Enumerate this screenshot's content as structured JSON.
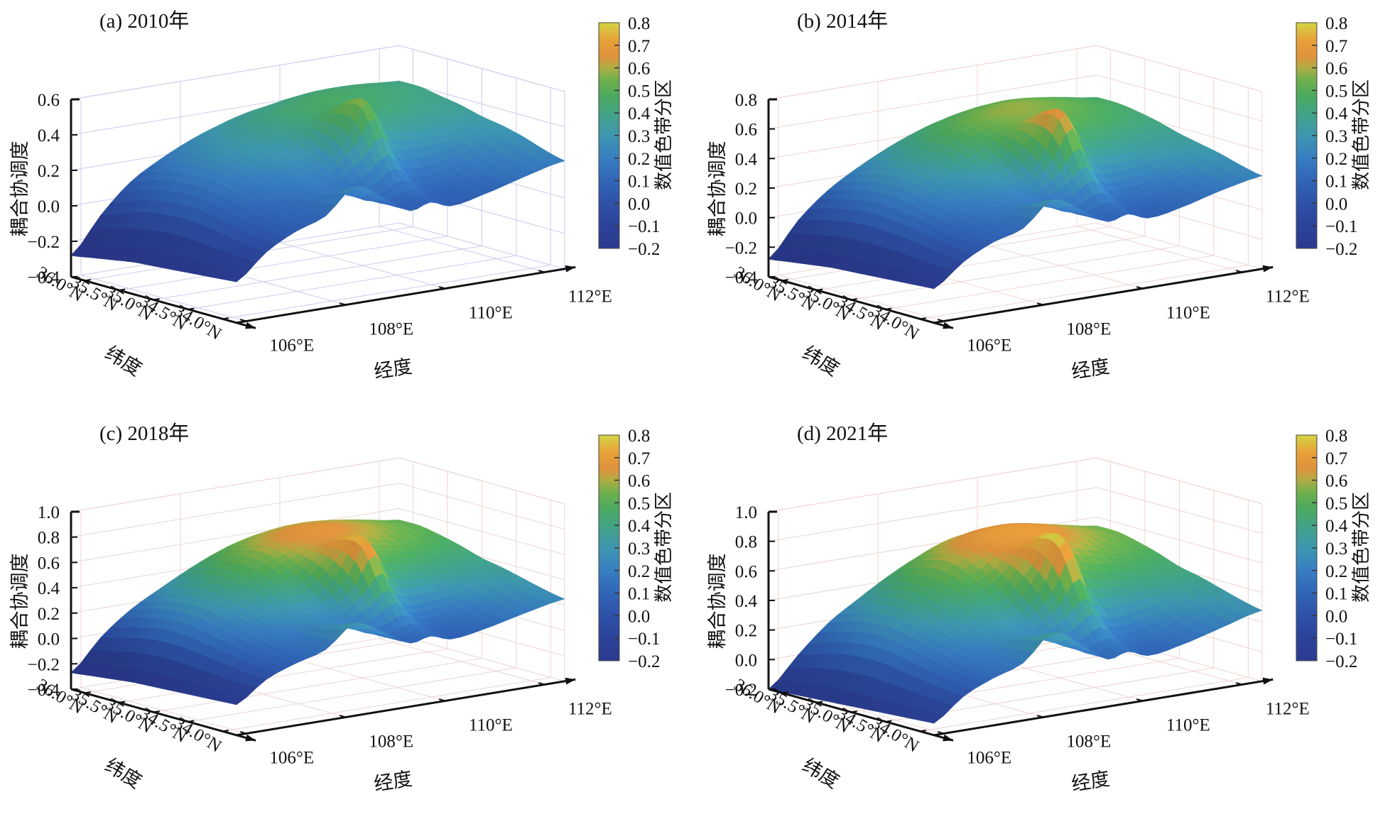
{
  "figure": {
    "background": "#ffffff"
  },
  "chart_data": {
    "type": "surface3d-grid",
    "shared": {
      "xlabel": "经度",
      "ylabel": "纬度",
      "zlabel": "耦合协调度",
      "colorbar_label": "数值色带分区",
      "xticks": [
        "106°E",
        "108°E",
        "110°E",
        "112°E"
      ],
      "xtick_values": [
        106,
        108,
        110,
        112
      ],
      "yticks": [
        "36.0°N",
        "35.5°N",
        "35.0°N",
        "34.5°N",
        "34.0°N"
      ],
      "ytick_values": [
        36.0,
        35.5,
        35.0,
        34.5,
        34.0
      ],
      "lon_range": [
        105.8,
        112.4
      ],
      "lat_range": [
        33.8,
        36.2
      ],
      "colorbar_range": [
        -0.2,
        0.8
      ],
      "colorbar_ticks": [
        "0.8",
        "0.7",
        "0.6",
        "0.5",
        "0.4",
        "0.3",
        "0.2",
        "0.1",
        "0.0",
        "−0.1",
        "−0.2"
      ],
      "colorbar_tick_values": [
        0.8,
        0.7,
        0.6,
        0.5,
        0.4,
        0.3,
        0.2,
        0.1,
        0.0,
        -0.1,
        -0.2
      ],
      "colormap": [
        [
          -0.2,
          "#2c3a90"
        ],
        [
          -0.1,
          "#2c4399"
        ],
        [
          0.0,
          "#2e51a8"
        ],
        [
          0.1,
          "#3165b7"
        ],
        [
          0.2,
          "#377ec1"
        ],
        [
          0.3,
          "#3e97b1"
        ],
        [
          0.4,
          "#42a383"
        ],
        [
          0.48,
          "#4daa5d"
        ],
        [
          0.55,
          "#72b04c"
        ],
        [
          0.6,
          "#b0ad43"
        ],
        [
          0.65,
          "#de923c"
        ],
        [
          0.72,
          "#e8a03a"
        ],
        [
          0.8,
          "#d5d443"
        ]
      ],
      "grid_lons": [
        106,
        108,
        110,
        112
      ],
      "grid_lats": [
        34.0,
        34.5,
        35.0,
        35.5,
        36.0
      ],
      "lon_samples": [
        105.8,
        106.4,
        107.0,
        107.6,
        108.2,
        108.8,
        109.3,
        109.7,
        110.1,
        110.7,
        111.5,
        112.4
      ],
      "lat_samples": [
        36.2,
        35.9,
        35.6,
        35.3,
        35.0,
        34.7,
        34.4,
        34.1,
        33.8
      ]
    },
    "panels": [
      {
        "id": "a",
        "title": "(a) 2010年",
        "zlim": [
          -0.4,
          0.6
        ],
        "zticks": [
          "0.6",
          "0.4",
          "0.2",
          "0.0",
          "−0.2",
          "−0.4"
        ],
        "ztick_values": [
          0.6,
          0.4,
          0.2,
          0.0,
          -0.2,
          -0.4
        ],
        "grid_color": "#ccccec",
        "values": [
          [
            -0.28,
            -0.08,
            0.08,
            0.18,
            0.26,
            0.32,
            0.36,
            0.38,
            0.4,
            0.42,
            0.42,
            0.4
          ],
          [
            -0.26,
            -0.04,
            0.12,
            0.22,
            0.3,
            0.36,
            0.4,
            0.42,
            0.44,
            0.45,
            0.43,
            0.4
          ],
          [
            -0.24,
            0.0,
            0.15,
            0.25,
            0.32,
            0.38,
            0.43,
            0.45,
            0.46,
            0.45,
            0.42,
            0.38
          ],
          [
            -0.22,
            0.02,
            0.16,
            0.25,
            0.31,
            0.36,
            0.42,
            0.45,
            0.45,
            0.43,
            0.39,
            0.36
          ],
          [
            -0.21,
            0.03,
            0.15,
            0.22,
            0.27,
            0.31,
            0.44,
            0.54,
            0.42,
            0.36,
            0.34,
            0.33
          ],
          [
            -0.2,
            0.02,
            0.12,
            0.18,
            0.22,
            0.24,
            0.4,
            0.56,
            0.3,
            0.26,
            0.28,
            0.31
          ],
          [
            -0.19,
            0.0,
            0.09,
            0.14,
            0.18,
            0.16,
            0.22,
            0.3,
            0.16,
            0.16,
            0.22,
            0.28
          ],
          [
            -0.18,
            -0.02,
            0.07,
            0.12,
            0.2,
            0.12,
            0.1,
            0.14,
            0.09,
            0.11,
            0.17,
            0.24
          ],
          [
            -0.17,
            -0.03,
            0.06,
            0.12,
            0.26,
            0.16,
            0.07,
            0.1,
            0.06,
            0.09,
            0.15,
            0.21
          ]
        ]
      },
      {
        "id": "b",
        "title": "(b) 2014年",
        "zlim": [
          -0.4,
          0.8
        ],
        "zticks": [
          "0.8",
          "0.6",
          "0.4",
          "0.2",
          "0.0",
          "−0.2",
          "−0.4"
        ],
        "ztick_values": [
          0.8,
          0.6,
          0.4,
          0.2,
          0.0,
          -0.2,
          -0.4
        ],
        "grid_color": "#ecd6d2",
        "values": [
          [
            -0.28,
            -0.05,
            0.12,
            0.24,
            0.34,
            0.42,
            0.47,
            0.5,
            0.52,
            0.53,
            0.5,
            0.45
          ],
          [
            -0.26,
            -0.01,
            0.16,
            0.28,
            0.38,
            0.47,
            0.52,
            0.55,
            0.57,
            0.56,
            0.51,
            0.45
          ],
          [
            -0.24,
            0.02,
            0.19,
            0.31,
            0.4,
            0.5,
            0.56,
            0.58,
            0.58,
            0.55,
            0.49,
            0.43
          ],
          [
            -0.22,
            0.04,
            0.2,
            0.3,
            0.38,
            0.46,
            0.53,
            0.56,
            0.55,
            0.5,
            0.44,
            0.4
          ],
          [
            -0.21,
            0.04,
            0.18,
            0.26,
            0.32,
            0.38,
            0.54,
            0.66,
            0.48,
            0.41,
            0.37,
            0.36
          ],
          [
            -0.2,
            0.03,
            0.15,
            0.21,
            0.26,
            0.28,
            0.46,
            0.68,
            0.34,
            0.29,
            0.31,
            0.33
          ],
          [
            -0.19,
            0.01,
            0.11,
            0.17,
            0.21,
            0.19,
            0.26,
            0.36,
            0.18,
            0.18,
            0.24,
            0.3
          ],
          [
            -0.18,
            -0.01,
            0.09,
            0.14,
            0.24,
            0.15,
            0.12,
            0.16,
            0.1,
            0.12,
            0.19,
            0.26
          ],
          [
            -0.17,
            -0.02,
            0.08,
            0.14,
            0.3,
            0.19,
            0.09,
            0.12,
            0.07,
            0.1,
            0.17,
            0.23
          ]
        ]
      },
      {
        "id": "c",
        "title": "(c) 2018年",
        "zlim": [
          -0.4,
          1.0
        ],
        "zticks": [
          "1.0",
          "0.8",
          "0.6",
          "0.4",
          "0.2",
          "0.0",
          "−0.2",
          "−0.4"
        ],
        "ztick_values": [
          1.0,
          0.8,
          0.6,
          0.4,
          0.2,
          0.0,
          -0.2,
          -0.4
        ],
        "grid_color": "#e9d6d2",
        "values": [
          [
            -0.27,
            -0.03,
            0.15,
            0.28,
            0.4,
            0.5,
            0.56,
            0.59,
            0.61,
            0.61,
            0.57,
            0.51
          ],
          [
            -0.25,
            0.01,
            0.2,
            0.33,
            0.45,
            0.55,
            0.62,
            0.65,
            0.66,
            0.64,
            0.58,
            0.51
          ],
          [
            -0.23,
            0.05,
            0.23,
            0.36,
            0.47,
            0.58,
            0.65,
            0.67,
            0.67,
            0.63,
            0.55,
            0.48
          ],
          [
            -0.21,
            0.07,
            0.24,
            0.35,
            0.44,
            0.53,
            0.61,
            0.64,
            0.62,
            0.56,
            0.49,
            0.44
          ],
          [
            -0.2,
            0.07,
            0.21,
            0.3,
            0.37,
            0.43,
            0.6,
            0.74,
            0.54,
            0.45,
            0.41,
            0.39
          ],
          [
            -0.19,
            0.05,
            0.17,
            0.24,
            0.29,
            0.31,
            0.5,
            0.74,
            0.38,
            0.32,
            0.34,
            0.36
          ],
          [
            -0.18,
            0.03,
            0.13,
            0.19,
            0.24,
            0.21,
            0.29,
            0.4,
            0.2,
            0.2,
            0.26,
            0.32
          ],
          [
            -0.17,
            0.01,
            0.1,
            0.16,
            0.27,
            0.17,
            0.13,
            0.18,
            0.11,
            0.13,
            0.21,
            0.28
          ],
          [
            -0.16,
            0.0,
            0.09,
            0.16,
            0.33,
            0.21,
            0.1,
            0.13,
            0.08,
            0.11,
            0.18,
            0.25
          ]
        ]
      },
      {
        "id": "d",
        "title": "(d) 2021年",
        "zlim": [
          -0.2,
          1.0
        ],
        "zticks": [
          "1.0",
          "0.8",
          "0.6",
          "0.4",
          "0.2",
          "0.0",
          "−0.2"
        ],
        "ztick_values": [
          1.0,
          0.8,
          0.6,
          0.4,
          0.2,
          0.0,
          -0.2
        ],
        "grid_color": "#ecd4ce",
        "values": [
          [
            -0.2,
            0.0,
            0.18,
            0.31,
            0.43,
            0.53,
            0.6,
            0.63,
            0.65,
            0.65,
            0.6,
            0.54
          ],
          [
            -0.19,
            0.04,
            0.23,
            0.36,
            0.48,
            0.59,
            0.66,
            0.69,
            0.7,
            0.68,
            0.61,
            0.54
          ],
          [
            -0.18,
            0.08,
            0.26,
            0.39,
            0.5,
            0.62,
            0.69,
            0.71,
            0.71,
            0.67,
            0.58,
            0.51
          ],
          [
            -0.17,
            0.1,
            0.27,
            0.38,
            0.47,
            0.56,
            0.65,
            0.68,
            0.66,
            0.6,
            0.52,
            0.47
          ],
          [
            -0.16,
            0.1,
            0.24,
            0.33,
            0.4,
            0.46,
            0.64,
            0.79,
            0.57,
            0.48,
            0.44,
            0.42
          ],
          [
            -0.15,
            0.08,
            0.2,
            0.27,
            0.32,
            0.34,
            0.53,
            0.78,
            0.41,
            0.35,
            0.37,
            0.39
          ],
          [
            -0.14,
            0.06,
            0.16,
            0.22,
            0.27,
            0.24,
            0.32,
            0.43,
            0.22,
            0.22,
            0.29,
            0.35
          ],
          [
            -0.13,
            0.04,
            0.13,
            0.19,
            0.3,
            0.2,
            0.15,
            0.2,
            0.13,
            0.15,
            0.23,
            0.31
          ],
          [
            -0.12,
            0.03,
            0.12,
            0.19,
            0.36,
            0.24,
            0.12,
            0.15,
            0.1,
            0.13,
            0.2,
            0.28
          ]
        ]
      }
    ]
  }
}
